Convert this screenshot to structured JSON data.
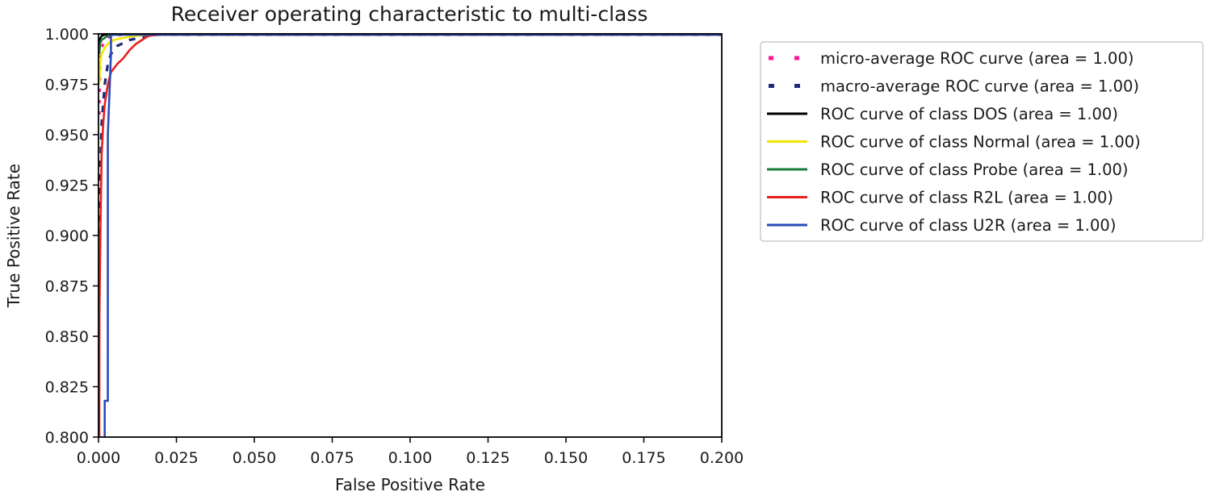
{
  "chart_data": {
    "type": "line",
    "title": "Receiver operating characteristic to multi-class",
    "xlabel": "False Positive Rate",
    "ylabel": "True Positive Rate",
    "xlim": [
      0.0,
      0.2
    ],
    "ylim": [
      0.8,
      1.0
    ],
    "x_ticks": [
      "0.000",
      "0.025",
      "0.050",
      "0.075",
      "0.100",
      "0.125",
      "0.150",
      "0.175",
      "0.200"
    ],
    "y_ticks": [
      "0.800",
      "0.825",
      "0.850",
      "0.875",
      "0.900",
      "0.925",
      "0.950",
      "0.975",
      "1.000"
    ],
    "grid": false,
    "legend_position": "outside-right",
    "series": [
      {
        "name": "micro-average ROC curve (area = 1.00)",
        "color": "#ff1493",
        "style": "dotted",
        "x": [
          0.0,
          0.0005,
          0.001,
          0.002,
          0.004,
          0.008,
          0.2
        ],
        "y": [
          0.96,
          0.985,
          0.993,
          0.997,
          0.999,
          1.0,
          1.0
        ]
      },
      {
        "name": "macro-average ROC curve (area = 1.00)",
        "color": "#1f2a7a",
        "style": "dashed",
        "x": [
          0.0,
          0.0005,
          0.001,
          0.002,
          0.003,
          0.004,
          0.006,
          0.01,
          0.018,
          0.2
        ],
        "y": [
          0.9,
          0.93,
          0.955,
          0.975,
          0.985,
          0.99,
          0.994,
          0.997,
          1.0,
          1.0
        ]
      },
      {
        "name": "ROC curve of class DOS (area = 1.00)",
        "color": "#000000",
        "style": "solid",
        "x": [
          0.0,
          0.0003,
          0.001,
          0.002,
          0.2
        ],
        "y": [
          0.99,
          0.997,
          0.999,
          1.0,
          1.0
        ]
      },
      {
        "name": "ROC curve of class Normal (area = 1.00)",
        "color": "#f2e600",
        "style": "solid",
        "x": [
          0.0,
          0.0005,
          0.001,
          0.002,
          0.003,
          0.005,
          0.008,
          0.012,
          0.016,
          0.2
        ],
        "y": [
          0.975,
          0.985,
          0.99,
          0.993,
          0.995,
          0.997,
          0.998,
          0.999,
          1.0,
          1.0
        ]
      },
      {
        "name": "ROC curve of class Probe (area = 1.00)",
        "color": "#1a7a3a",
        "style": "solid",
        "x": [
          0.0,
          0.0005,
          0.001,
          0.002,
          0.003,
          0.005,
          0.2
        ],
        "y": [
          0.99,
          0.995,
          0.997,
          0.998,
          0.999,
          1.0,
          1.0
        ]
      },
      {
        "name": "ROC curve of class R2L (area = 1.00)",
        "color": "#e8201c",
        "style": "solid",
        "x": [
          0.0,
          0.0003,
          0.0006,
          0.001,
          0.0015,
          0.002,
          0.003,
          0.004,
          0.006,
          0.008,
          0.01,
          0.012,
          0.014,
          0.016,
          0.02,
          0.2
        ],
        "y": [
          0.8,
          0.86,
          0.9,
          0.94,
          0.955,
          0.965,
          0.975,
          0.981,
          0.985,
          0.988,
          0.992,
          0.995,
          0.997,
          0.999,
          1.0,
          1.0
        ]
      },
      {
        "name": "ROC curve of class U2R (area = 1.00)",
        "color": "#2a4bb8",
        "style": "solid",
        "x": [
          0.002,
          0.002,
          0.003,
          0.003,
          0.0035,
          0.004,
          0.004,
          0.2
        ],
        "y": [
          0.8,
          0.818,
          0.818,
          0.95,
          0.97,
          0.99,
          1.0,
          1.0
        ]
      }
    ]
  }
}
